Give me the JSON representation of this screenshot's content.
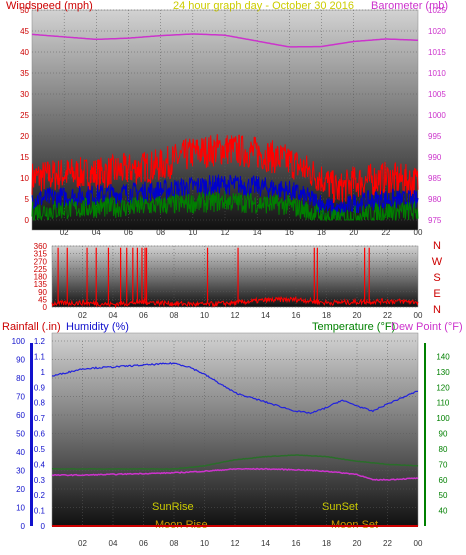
{
  "header": {
    "windspeed_label": "Windspeed (mph)",
    "graph_title": "24 hour graph day - October 30 2016",
    "barometer_label": "Barometer (mb)",
    "rainfall_label": "Rainfall (.in)",
    "humidity_label": "Humidity (%)",
    "temperature_label": "Temperature (°F)",
    "dewpoint_label": "Dew Point (°F)"
  },
  "colors": {
    "windspeed": "#ff0000",
    "wind_avg": "#0000cc",
    "wind_low": "#008000",
    "barometer": "#cc33cc",
    "direction": "#ff0000",
    "humidity": "#2222dd",
    "temperature": "#2a6e2a",
    "dewpoint": "#cc33cc",
    "rainfall": "#cc0000",
    "sun": "#cccc00",
    "moon": "#cc9900",
    "humidity_axis": "#1111cc",
    "temp_axis": "#008000"
  },
  "chart_data": [
    {
      "type": "line",
      "title": "24 hour graph day - October 30 2016",
      "x_ticks": [
        "02",
        "04",
        "06",
        "08",
        "10",
        "12",
        "14",
        "16",
        "18",
        "20",
        "22",
        "00"
      ],
      "y_left": {
        "label": "Windspeed (mph)",
        "range": [
          0,
          50
        ],
        "ticks": [
          0,
          5,
          10,
          15,
          20,
          25,
          30,
          35,
          40,
          45,
          50
        ]
      },
      "y_right": {
        "label": "Barometer (mb)",
        "range": [
          975,
          1025
        ],
        "ticks": [
          975,
          980,
          985,
          990,
          995,
          1000,
          1005,
          1010,
          1015,
          1020,
          1025
        ]
      },
      "series": [
        {
          "name": "Barometer (mb)",
          "axis": "right",
          "x": [
            0,
            2,
            4,
            6,
            8,
            10,
            12,
            14,
            16,
            18,
            20,
            22,
            24
          ],
          "values": [
            1019.2,
            1018.6,
            1018.0,
            1018.3,
            1018.9,
            1019.3,
            1019.0,
            1017.6,
            1016.2,
            1016.3,
            1017.5,
            1018.1,
            1017.8
          ]
        },
        {
          "name": "Windspeed high",
          "axis": "left",
          "x": [
            0,
            2,
            4,
            6,
            8,
            10,
            12,
            14,
            16,
            18,
            19,
            20,
            22,
            24
          ],
          "values": [
            10,
            11,
            11,
            12,
            13,
            16,
            17,
            16,
            14,
            10,
            7,
            9,
            10,
            9
          ]
        },
        {
          "name": "Windspeed average",
          "axis": "left",
          "x": [
            0,
            2,
            4,
            6,
            8,
            10,
            12,
            14,
            16,
            18,
            19,
            20,
            22,
            24
          ],
          "values": [
            5,
            5.5,
            6,
            6.5,
            7,
            8,
            8.5,
            8,
            7,
            4,
            2,
            4,
            5,
            4.5
          ]
        },
        {
          "name": "Windspeed low",
          "axis": "left",
          "x": [
            0,
            2,
            4,
            6,
            8,
            10,
            12,
            14,
            16,
            18,
            19,
            20,
            22,
            24
          ],
          "values": [
            2,
            2.5,
            3,
            3,
            3.5,
            4,
            4.5,
            4,
            3.5,
            1,
            0,
            1,
            2,
            2
          ]
        }
      ]
    },
    {
      "type": "line",
      "x_ticks": [
        "02",
        "04",
        "06",
        "08",
        "10",
        "12",
        "14",
        "16",
        "18",
        "20",
        "22",
        "00"
      ],
      "y_left": {
        "range": [
          0,
          360
        ],
        "ticks": [
          0,
          45,
          90,
          135,
          180,
          225,
          270,
          315,
          360
        ]
      },
      "y_right": {
        "compass": [
          "N",
          "W",
          "S",
          "E",
          "N"
        ]
      },
      "series": [
        {
          "name": "Wind direction",
          "x": [
            0,
            2,
            4,
            6,
            8,
            10,
            12,
            14,
            16,
            18,
            20,
            22,
            24
          ],
          "values": [
            20,
            25,
            15,
            30,
            20,
            15,
            25,
            40,
            45,
            25,
            30,
            35,
            30
          ]
        }
      ],
      "spikes_x": [
        0.4,
        1.0,
        2.3,
        2.9,
        3.7,
        4.5,
        4.9,
        5.3,
        5.6,
        5.9,
        6.1,
        6.2,
        10.2,
        12.2,
        17.2,
        17.4,
        20.5,
        20.8
      ]
    },
    {
      "type": "line",
      "x_ticks": [
        "02",
        "04",
        "06",
        "08",
        "10",
        "12",
        "14",
        "16",
        "18",
        "20",
        "22",
        "00"
      ],
      "y_rain": {
        "label": "Rainfall (.in)",
        "range": [
          0,
          1.2
        ],
        "ticks": [
          0,
          0.1,
          0.2,
          0.3,
          0.4,
          0.5,
          0.6,
          0.7,
          0.8,
          0.9,
          1,
          1.1,
          1.2
        ]
      },
      "y_humidity": {
        "label": "Humidity (%)",
        "range": [
          0,
          100
        ],
        "ticks": [
          0,
          10,
          20,
          30,
          40,
          50,
          60,
          70,
          80,
          90,
          100
        ]
      },
      "y_temp": {
        "label": "Temperature (°F)",
        "range": [
          30,
          150
        ],
        "ticks": [
          40,
          50,
          60,
          70,
          80,
          90,
          100,
          110,
          120,
          130,
          140
        ]
      },
      "series": [
        {
          "name": "Humidity (%)",
          "axis": "humidity",
          "x": [
            0,
            1,
            2,
            4,
            6,
            8,
            9,
            10,
            12,
            14,
            16,
            17,
            18,
            19,
            20,
            21,
            22,
            24
          ],
          "values": [
            81,
            83,
            85,
            86,
            87,
            88,
            86,
            82,
            72,
            67,
            62,
            61,
            64,
            68,
            65,
            62,
            66,
            73
          ]
        },
        {
          "name": "Temperature (°F)",
          "axis": "temp",
          "x": [
            0,
            2,
            4,
            6,
            8,
            10,
            12,
            14,
            16,
            18,
            20,
            22,
            24
          ],
          "values": [
            67,
            67,
            67,
            67,
            67,
            69,
            73,
            75,
            76,
            75,
            72,
            70,
            69
          ]
        },
        {
          "name": "Dew Point (°F)",
          "axis": "temp",
          "x": [
            0,
            2,
            4,
            6,
            8,
            10,
            12,
            14,
            16,
            18,
            20,
            21,
            22,
            24
          ],
          "values": [
            63,
            63,
            63.5,
            64,
            64.5,
            65.5,
            67,
            67,
            66.5,
            65.5,
            63.5,
            60,
            60,
            61
          ]
        },
        {
          "name": "Rainfall (.in)",
          "axis": "rain",
          "x": [
            0,
            24
          ],
          "values": [
            0,
            0
          ]
        }
      ],
      "events": {
        "sunrise": "SunRise",
        "sunset": "SunSet",
        "moonrise": "Moon Rise",
        "moonset": "Moon Set"
      }
    }
  ]
}
